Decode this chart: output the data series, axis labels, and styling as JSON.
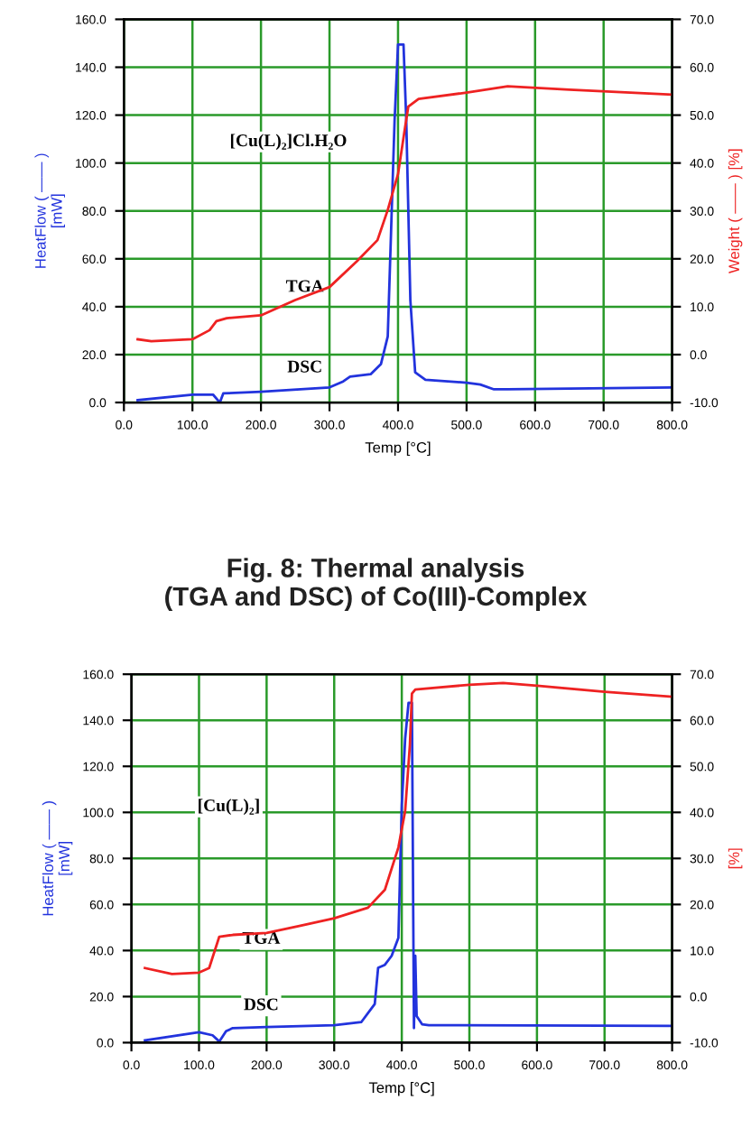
{
  "chart_data": [
    {
      "type": "line",
      "xlabel": "Temp [°C]",
      "ylabel": "HeatFlow ( —— )\n[mW]",
      "y2label": "Weight ( —— ) [%]",
      "grid": true,
      "legend": false,
      "xlim": [
        0,
        800
      ],
      "ylim": [
        0,
        160
      ],
      "y2lim": [
        -10,
        70
      ],
      "xticks": [
        {
          "value": 0,
          "label": "0.0"
        },
        {
          "value": 100,
          "label": "100.0"
        },
        {
          "value": 200,
          "label": "200.0"
        },
        {
          "value": 300,
          "label": "300.0"
        },
        {
          "value": 400,
          "label": "400.0"
        },
        {
          "value": 500,
          "label": "500.0"
        },
        {
          "value": 600,
          "label": "600.0"
        },
        {
          "value": 700,
          "label": "700.0"
        },
        {
          "value": 800,
          "label": "800.0"
        }
      ],
      "yticks": [
        {
          "value": 0,
          "label": "0.0"
        },
        {
          "value": 20,
          "label": "20.0"
        },
        {
          "value": 40,
          "label": "40.0"
        },
        {
          "value": 60,
          "label": "60.0"
        },
        {
          "value": 80,
          "label": "80.0"
        },
        {
          "value": 100,
          "label": "100.0"
        },
        {
          "value": 120,
          "label": "120.0"
        },
        {
          "value": 140,
          "label": "140.0"
        },
        {
          "value": 160,
          "label": "160.0"
        }
      ],
      "y2ticks": [
        {
          "value": -10,
          "label": "-10.0"
        },
        {
          "value": 0,
          "label": "0.0"
        },
        {
          "value": 10,
          "label": "10.0"
        },
        {
          "value": 20,
          "label": "20.0"
        },
        {
          "value": 30,
          "label": "30.0"
        },
        {
          "value": 40,
          "label": "40.0"
        },
        {
          "value": 50,
          "label": "50.0"
        },
        {
          "value": 60,
          "label": "60.0"
        },
        {
          "value": 70,
          "label": "70.0"
        }
      ],
      "series": [
        {
          "color": "#2233dd",
          "x": [
            20,
            100,
            130,
            140,
            145,
            200,
            300,
            320,
            330,
            360,
            375,
            385,
            395,
            400,
            408,
            412,
            418,
            425,
            440,
            500,
            520,
            540,
            560,
            800
          ],
          "values": [
            1,
            3.3,
            3.3,
            0,
            3.8,
            4.5,
            6.3,
            8.8,
            10.8,
            11.8,
            16,
            27.6,
            118,
            149.5,
            149.5,
            118,
            42.7,
            12.6,
            9.5,
            8.3,
            7.5,
            5.5,
            5.5,
            6.3
          ]
        },
        {
          "color": "#ee2222",
          "axis": "y2",
          "x": [
            20,
            40,
            100,
            125,
            135,
            150,
            200,
            250,
            300,
            340,
            370,
            385,
            400,
            410,
            415,
            430,
            500,
            560,
            650,
            800
          ],
          "values": [
            3.2,
            2.8,
            3.2,
            5.1,
            7,
            7.6,
            8.2,
            11.4,
            14.1,
            19.5,
            23.9,
            30.2,
            37.7,
            47.2,
            51.8,
            53.4,
            54.7,
            56,
            55.3,
            54.3
          ]
        }
      ],
      "annotations": [
        "[Cu(L)₂]Cl.H₂O",
        "TGA",
        "DSC",
        "Fig. 8: Thermal analysis\n(TGA and DSC) of Co(III)-Complex"
      ]
    },
    {
      "type": "line",
      "xlabel": "Temp [°C]",
      "ylabel": "HeatFlow ( —— )\n[mW]",
      "y2label": "[%]",
      "grid": true,
      "legend": false,
      "xlim": [
        0,
        800
      ],
      "ylim": [
        0,
        160
      ],
      "y2lim": [
        -10,
        70
      ],
      "xticks": [
        {
          "value": 0,
          "label": "0.0"
        },
        {
          "value": 100,
          "label": "100.0"
        },
        {
          "value": 200,
          "label": "200.0"
        },
        {
          "value": 300,
          "label": "300.0"
        },
        {
          "value": 400,
          "label": "400.0"
        },
        {
          "value": 500,
          "label": "500.0"
        },
        {
          "value": 600,
          "label": "600.0"
        },
        {
          "value": 700,
          "label": "700.0"
        },
        {
          "value": 800,
          "label": "800.0"
        }
      ],
      "yticks": [
        {
          "value": 0,
          "label": "0.0"
        },
        {
          "value": 20,
          "label": "20.0"
        },
        {
          "value": 40,
          "label": "40.0"
        },
        {
          "value": 60,
          "label": "60.0"
        },
        {
          "value": 80,
          "label": "80.0"
        },
        {
          "value": 100,
          "label": "100.0"
        },
        {
          "value": 120,
          "label": "120.0"
        },
        {
          "value": 140,
          "label": "140.0"
        },
        {
          "value": 160,
          "label": "160.0"
        }
      ],
      "y2ticks": [
        {
          "value": -10,
          "label": "-10.0"
        },
        {
          "value": 0,
          "label": "0.0"
        },
        {
          "value": 10,
          "label": "10.0"
        },
        {
          "value": 20,
          "label": "20.0"
        },
        {
          "value": 30,
          "label": "30.0"
        },
        {
          "value": 40,
          "label": "40.0"
        },
        {
          "value": 50,
          "label": "50.0"
        },
        {
          "value": 60,
          "label": "60.0"
        },
        {
          "value": 70,
          "label": "70.0"
        }
      ],
      "series": [
        {
          "color": "#2233dd",
          "x": [
            20,
            100,
            120,
            130,
            140,
            150,
            200,
            300,
            340,
            360,
            365,
            375,
            385,
            395,
            400,
            405,
            410,
            415,
            418,
            420,
            422,
            430,
            440,
            800
          ],
          "values": [
            1,
            4.5,
            3.2,
            0.5,
            5,
            6.3,
            6.8,
            7.6,
            8.9,
            16.8,
            32.5,
            33.8,
            37.7,
            45.5,
            103,
            132,
            147.6,
            147.6,
            6.3,
            37.7,
            11.5,
            8,
            7.6,
            7.3
          ]
        },
        {
          "color": "#ee2222",
          "axis": "y2",
          "x": [
            20,
            60,
            100,
            115,
            130,
            150,
            200,
            250,
            300,
            350,
            375,
            395,
            405,
            412,
            415,
            420,
            500,
            550,
            600,
            700,
            800
          ],
          "values": [
            6.2,
            4.9,
            5.2,
            6.2,
            13,
            13.4,
            13.8,
            15.4,
            17,
            19.3,
            23.2,
            32.4,
            40.3,
            54.7,
            65.8,
            66.7,
            67.7,
            68.1,
            67.5,
            66.2,
            65.1
          ]
        }
      ],
      "annotations": [
        "[Cu(L)₂]",
        "TGA",
        "DSC"
      ]
    }
  ]
}
